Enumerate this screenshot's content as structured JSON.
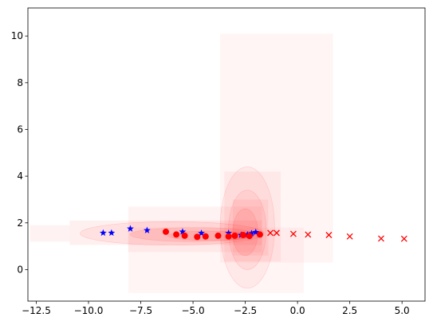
{
  "chart_data": {
    "type": "scatter",
    "title": "",
    "xlabel": "",
    "ylabel": "",
    "xlim": [
      -12.9,
      6.1
    ],
    "ylim": [
      -1.35,
      11.2
    ],
    "xticks": [
      -12.5,
      -10.0,
      -7.5,
      -5.0,
      -2.5,
      0.0,
      2.5,
      5.0
    ],
    "xtick_labels": [
      "−12.5",
      "−10.0",
      "−7.5",
      "−5.0",
      "−2.5",
      "0.0",
      "2.5",
      "5.0"
    ],
    "yticks": [
      0,
      2,
      4,
      6,
      8,
      10
    ],
    "ytick_labels": [
      "0",
      "2",
      "4",
      "6",
      "8",
      "10"
    ],
    "grid": false,
    "legend": "none",
    "density_color": "#ff0000",
    "series": [
      {
        "marker": "star",
        "color": "#0000ff",
        "x": [
          -9.3,
          -8.9,
          -8.0,
          -7.2,
          -5.5,
          -4.6,
          -3.3,
          -2.7,
          -2.4,
          -2.2,
          -2.0
        ],
        "y": [
          1.57,
          1.57,
          1.75,
          1.68,
          1.62,
          1.56,
          1.56,
          1.48,
          1.5,
          1.55,
          1.6
        ]
      },
      {
        "marker": "circle",
        "color": "#ff0000",
        "x": [
          -6.3,
          -5.8,
          -5.4,
          -4.8,
          -4.4,
          -3.8,
          -3.3,
          -3.0,
          -2.6,
          -2.3,
          -1.8
        ],
        "y": [
          1.62,
          1.5,
          1.45,
          1.4,
          1.42,
          1.45,
          1.42,
          1.45,
          1.48,
          1.44,
          1.5
        ]
      },
      {
        "marker": "x",
        "color": "#ff0000",
        "x": [
          -1.3,
          -1.0,
          -0.2,
          0.5,
          1.5,
          2.5,
          4.0,
          5.1
        ],
        "y": [
          1.57,
          1.57,
          1.53,
          1.5,
          1.48,
          1.42,
          1.33,
          1.32
        ]
      }
    ]
  }
}
